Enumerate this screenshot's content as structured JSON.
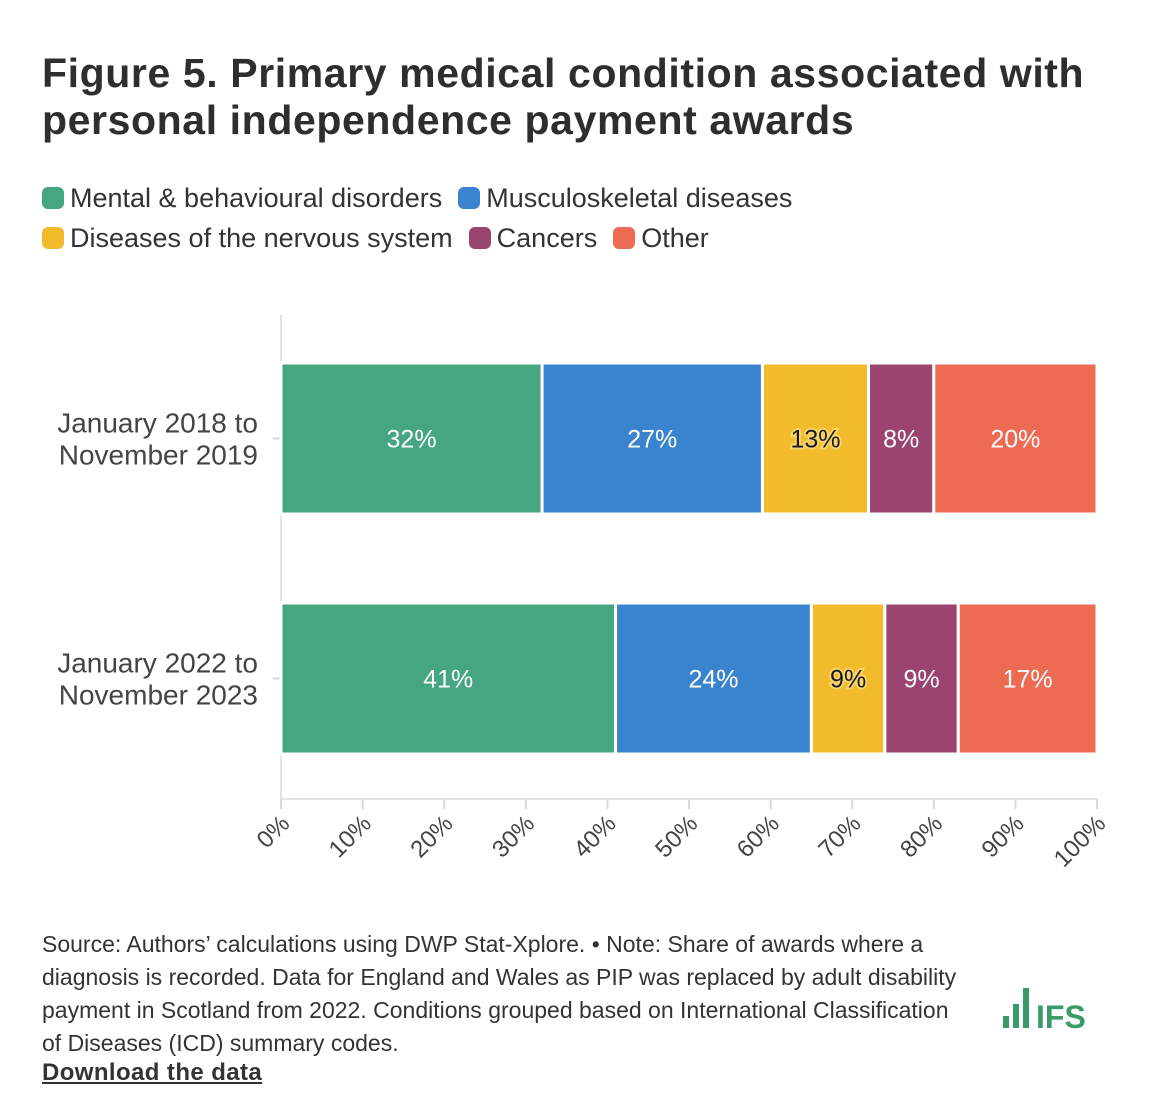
{
  "title": "Figure 5. Primary medical condition associated with personal independence payment awards",
  "legend": [
    {
      "label": "Mental & behavioural disorders",
      "color": "#45a680"
    },
    {
      "label": "Musculoskeletal diseases",
      "color": "#3a84cf"
    },
    {
      "label": "Diseases of the nervous system",
      "color": "#f2bb2b"
    },
    {
      "label": "Cancers",
      "color": "#9b4470"
    },
    {
      "label": "Other",
      "color": "#ec6b52"
    }
  ],
  "chart_data": {
    "type": "bar",
    "orientation": "horizontal",
    "stacked": true,
    "title": "Figure 5. Primary medical condition associated with personal independence payment awards",
    "categories": [
      "January 2018 to November 2019",
      "January 2022 to November 2023"
    ],
    "category_lines": [
      [
        "January 2018 to",
        "November 2019"
      ],
      [
        "January 2022 to",
        "November 2023"
      ]
    ],
    "series": [
      {
        "name": "Mental & behavioural disorders",
        "color": "#45a680",
        "label_color": "#ffffff",
        "values": [
          32,
          41
        ],
        "labels": [
          "32%",
          "41%"
        ]
      },
      {
        "name": "Musculoskeletal diseases",
        "color": "#3a84cf",
        "label_color": "#ffffff",
        "values": [
          27,
          24
        ],
        "labels": [
          "27%",
          "24%"
        ]
      },
      {
        "name": "Diseases of the nervous system",
        "color": "#f2bb2b",
        "label_color": "#1a1a1a",
        "values": [
          13,
          9
        ],
        "labels": [
          "13%",
          "9%"
        ]
      },
      {
        "name": "Cancers",
        "color": "#9b4470",
        "label_color": "#ffffff",
        "values": [
          8,
          9
        ],
        "labels": [
          "8%",
          "9%"
        ]
      },
      {
        "name": "Other",
        "color": "#ec6b52",
        "label_color": "#ffffff",
        "values": [
          20,
          17
        ],
        "labels": [
          "20%",
          "17%"
        ]
      }
    ],
    "xlim": [
      0,
      100
    ],
    "xticks": [
      0,
      10,
      20,
      30,
      40,
      50,
      60,
      70,
      80,
      90,
      100
    ],
    "xtick_labels": [
      "0%",
      "10%",
      "20%",
      "30%",
      "40%",
      "50%",
      "60%",
      "70%",
      "80%",
      "90%",
      "100%"
    ],
    "xlabel": "",
    "ylabel": "",
    "grid": false
  },
  "source": "Source: Authors’ calculations using DWP Stat-Xplore. • Note: Share of awards where a diagnosis is recorded. Data for England and Wales as PIP was replaced by adult disability payment in Scotland from 2022. Conditions grouped based on International Classification of Diseases (ICD) summary codes.",
  "download_label": "Download the data",
  "logo": {
    "text": "IFS",
    "color": "#3a9a6a"
  }
}
